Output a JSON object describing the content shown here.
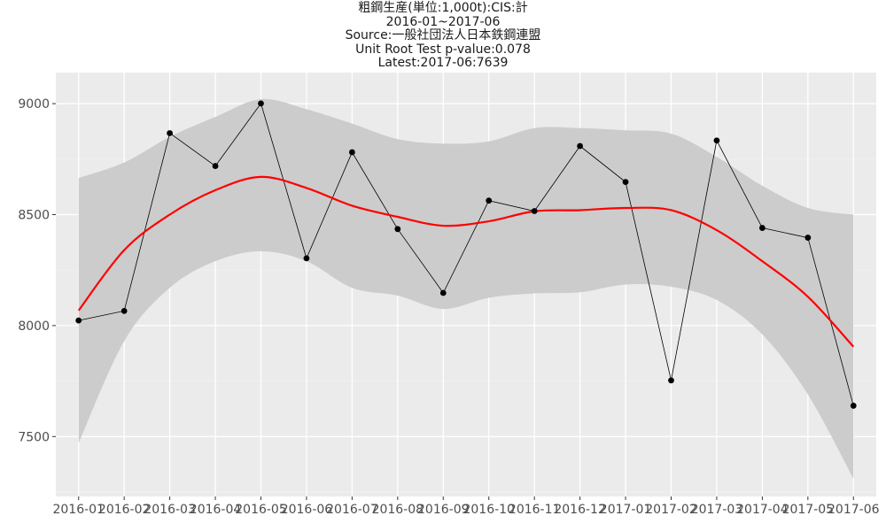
{
  "chart_data": {
    "type": "line",
    "title_lines": [
      "粗鋼生産(単位:1,000t):CIS:計",
      "2016-01~2017-06",
      "Source:一般社団法人日本鉄鋼連盟",
      "Unit Root Test p-value:0.078",
      "Latest:2017-06:7639"
    ],
    "xlabel": "",
    "ylabel": "",
    "categories": [
      "2016-01",
      "2016-02",
      "2016-03",
      "2016-04",
      "2016-05",
      "2016-06",
      "2016-07",
      "2016-08",
      "2016-09",
      "2016-10",
      "2016-11",
      "2016-12",
      "2017-01",
      "2017-02",
      "2017-03",
      "2017-04",
      "2017-05",
      "2017-06"
    ],
    "series": [
      {
        "name": "",
        "values": [
          8023,
          8066,
          8867,
          8719,
          9001,
          8303,
          8781,
          8435,
          8147,
          8563,
          8516,
          8809,
          8647,
          7753,
          8834,
          8440,
          8396,
          7639
        ]
      }
    ],
    "smooth": {
      "fit": [
        8068,
        8340,
        8500,
        8610,
        8670,
        8620,
        8540,
        8490,
        8450,
        8470,
        8515,
        8520,
        8530,
        8520,
        8430,
        8290,
        8130,
        7905
      ],
      "lower": [
        7470,
        7930,
        8170,
        8290,
        8335,
        8290,
        8170,
        8135,
        8075,
        8125,
        8145,
        8150,
        8185,
        8175,
        8115,
        7960,
        7690,
        7310
      ],
      "upper": [
        8665,
        8735,
        8850,
        8940,
        9020,
        8975,
        8910,
        8840,
        8820,
        8830,
        8890,
        8890,
        8880,
        8865,
        8760,
        8630,
        8530,
        8500
      ]
    },
    "ylim": [
      7230,
      9140
    ],
    "yticks": [
      7500,
      8000,
      8500,
      9000
    ],
    "grid": true,
    "legend": "none",
    "colors": {
      "panel": "#ebebeb",
      "grid_major": "#ffffff",
      "grid_minor": "#f2f2f2",
      "band": "#cccccc",
      "smooth_line": "#ff0000",
      "data_line": "#000000",
      "points": "#000000"
    }
  }
}
